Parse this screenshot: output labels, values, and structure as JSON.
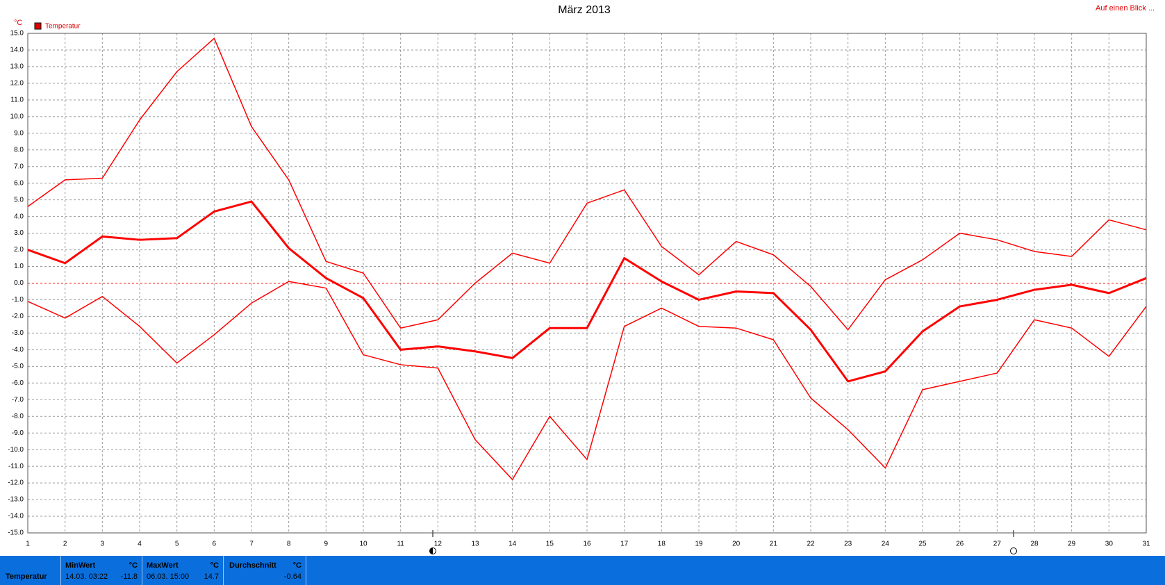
{
  "chart_data": {
    "type": "line",
    "title": "März 2013",
    "y_unit": "°C",
    "legend_label": "Temperatur",
    "legend_color": "#e00000",
    "link": "Auf einen Blick ...",
    "x": [
      1,
      2,
      3,
      4,
      5,
      6,
      7,
      8,
      9,
      10,
      11,
      12,
      13,
      14,
      15,
      16,
      17,
      18,
      19,
      20,
      21,
      22,
      23,
      24,
      25,
      26,
      27,
      28,
      29,
      30,
      31
    ],
    "xlim": [
      1,
      31
    ],
    "xticks": [
      1,
      2,
      3,
      4,
      5,
      6,
      7,
      8,
      9,
      10,
      11,
      12,
      13,
      14,
      15,
      16,
      17,
      18,
      19,
      20,
      21,
      22,
      23,
      24,
      25,
      26,
      27,
      28,
      29,
      30,
      31
    ],
    "ylim": [
      -15,
      15
    ],
    "yticks": [
      {
        "value": -15,
        "label": "-15.0"
      },
      {
        "value": -14,
        "label": "-14.0"
      },
      {
        "value": -13,
        "label": "-13.0"
      },
      {
        "value": -12,
        "label": "-12.0"
      },
      {
        "value": -11,
        "label": "-11.0"
      },
      {
        "value": -10,
        "label": "-10.0"
      },
      {
        "value": -9,
        "label": "-9.0"
      },
      {
        "value": -8,
        "label": "-8.0"
      },
      {
        "value": -7,
        "label": "-7.0"
      },
      {
        "value": -6,
        "label": "-6.0"
      },
      {
        "value": -5,
        "label": "-5.0"
      },
      {
        "value": -4,
        "label": "-4.0"
      },
      {
        "value": -3,
        "label": "-3.0"
      },
      {
        "value": -2,
        "label": "-2.0"
      },
      {
        "value": -1,
        "label": "-1.0"
      },
      {
        "value": 0,
        "label": "0.0"
      },
      {
        "value": 1,
        "label": "1.0"
      },
      {
        "value": 2,
        "label": "2.0"
      },
      {
        "value": 3,
        "label": "3.0"
      },
      {
        "value": 4,
        "label": "4.0"
      },
      {
        "value": 5,
        "label": "5.0"
      },
      {
        "value": 6,
        "label": "6.0"
      },
      {
        "value": 7,
        "label": "7.0"
      },
      {
        "value": 8,
        "label": "8.0"
      },
      {
        "value": 9,
        "label": "9.0"
      },
      {
        "value": 10,
        "label": "10.0"
      },
      {
        "value": 11,
        "label": "11.0"
      },
      {
        "value": 12,
        "label": "12.0"
      },
      {
        "value": 13,
        "label": "13.0"
      },
      {
        "value": 14,
        "label": "14.0"
      },
      {
        "value": 15,
        "label": "15.0"
      }
    ],
    "grid": true,
    "series": [
      {
        "color": "#ff0000",
        "width": 1.5,
        "values": [
          4.6,
          6.2,
          6.3,
          9.8,
          12.7,
          14.7,
          9.4,
          6.2,
          1.3,
          0.6,
          -2.7,
          -2.2,
          0.0,
          1.8,
          1.2,
          4.8,
          5.6,
          2.2,
          0.5,
          2.5,
          1.7,
          -0.2,
          -2.8,
          0.2,
          1.4,
          3.0,
          2.6,
          1.9,
          1.6,
          3.8,
          3.2
        ]
      },
      {
        "color": "#ff0000",
        "width": 3,
        "values": [
          2.0,
          1.2,
          2.8,
          2.6,
          2.7,
          4.3,
          4.9,
          2.1,
          0.3,
          -0.9,
          -4.0,
          -3.8,
          -4.1,
          -4.5,
          -2.7,
          -2.7,
          1.5,
          0.1,
          -1.0,
          -0.5,
          -0.6,
          -2.8,
          -5.9,
          -5.3,
          -2.9,
          -1.4,
          -1.0,
          -0.4,
          -0.1,
          -0.6,
          0.3
        ]
      },
      {
        "color": "#ff0000",
        "width": 1.5,
        "values": [
          -1.1,
          -2.1,
          -0.8,
          -2.6,
          -4.8,
          -3.1,
          -1.2,
          0.1,
          -0.3,
          -4.3,
          -4.9,
          -5.1,
          -9.4,
          -11.8,
          -8.0,
          -10.6,
          -2.6,
          -1.5,
          -2.6,
          -2.7,
          -3.4,
          -6.9,
          -8.8,
          -11.1,
          -6.4,
          -5.9,
          -5.4,
          -2.2,
          -2.7,
          -4.4,
          -1.4
        ]
      }
    ]
  },
  "summary": {
    "row_label": "Temperatur",
    "min": {
      "header": "MinWert",
      "unit": "°C",
      "time": "14.03.  03:22",
      "value": -11.8
    },
    "max": {
      "header": "MaxWert",
      "unit": "°C",
      "time": "06.03.  15:00",
      "value": 14.7
    },
    "avg": {
      "header": "Durchschnitt",
      "unit": "°C",
      "value": -0.64
    }
  }
}
